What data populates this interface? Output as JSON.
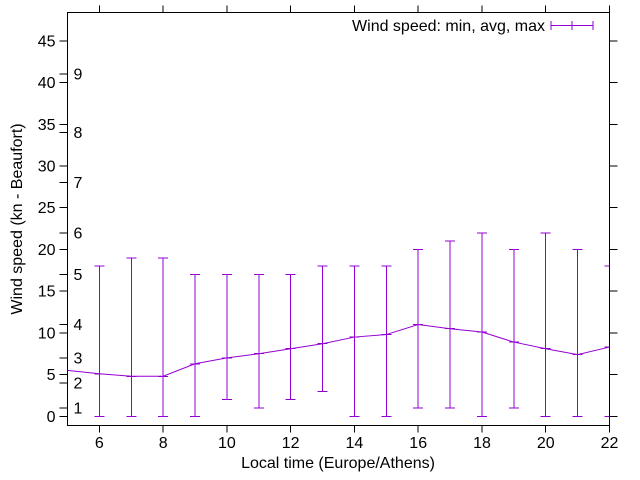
{
  "chart_data": {
    "type": "line",
    "subtype": "yerrorlines",
    "title": "",
    "legend_label": "Wind speed: min, avg, max",
    "legend_position": "top-right-inside",
    "xlabel": "Local time (Europe/Athens)",
    "ylabel": "Wind speed (kn - Beaufort)",
    "xlim": [
      5,
      22
    ],
    "ylim": [
      -1.1,
      48.4
    ],
    "xticks": [
      6,
      8,
      10,
      12,
      14,
      16,
      18,
      20,
      22
    ],
    "yticks": [
      0,
      5,
      10,
      15,
      20,
      25,
      30,
      35,
      40,
      45
    ],
    "grid": false,
    "beaufort_scale": [
      {
        "label": "1",
        "kn": 1
      },
      {
        "label": "2",
        "kn": 4
      },
      {
        "label": "3",
        "kn": 7
      },
      {
        "label": "4",
        "kn": 11
      },
      {
        "label": "5",
        "kn": 17
      },
      {
        "label": "6",
        "kn": 22
      },
      {
        "label": "7",
        "kn": 28
      },
      {
        "label": "8",
        "kn": 34
      },
      {
        "label": "9",
        "kn": 41
      }
    ],
    "line_start": {
      "x": 5,
      "avg": 5.5
    },
    "points": [
      {
        "x": 6,
        "min": 0,
        "avg": 5.1,
        "max": 18
      },
      {
        "x": 7,
        "min": 0,
        "avg": 4.8,
        "max": 19
      },
      {
        "x": 8,
        "min": 0,
        "avg": 4.8,
        "max": 19
      },
      {
        "x": 9,
        "min": 0,
        "avg": 6.3,
        "max": 17
      },
      {
        "x": 10,
        "min": 2,
        "avg": 7.0,
        "max": 17
      },
      {
        "x": 11,
        "min": 1,
        "avg": 7.5,
        "max": 17
      },
      {
        "x": 12,
        "min": 2,
        "avg": 8.1,
        "max": 17
      },
      {
        "x": 13,
        "min": 3,
        "avg": 8.7,
        "max": 18
      },
      {
        "x": 14,
        "min": 0,
        "avg": 9.5,
        "max": 18
      },
      {
        "x": 15,
        "min": 0,
        "avg": 9.8,
        "max": 18
      },
      {
        "x": 16,
        "min": 1,
        "avg": 11.0,
        "max": 20
      },
      {
        "x": 17,
        "min": 1,
        "avg": 10.5,
        "max": 21
      },
      {
        "x": 18,
        "min": 0,
        "avg": 10.1,
        "max": 22
      },
      {
        "x": 19,
        "min": 1,
        "avg": 8.9,
        "max": 20
      },
      {
        "x": 20,
        "min": 0,
        "avg": 8.1,
        "max": 22
      },
      {
        "x": 21,
        "min": 0,
        "avg": 7.4,
        "max": 20
      },
      {
        "x": 22,
        "min": 0,
        "avg": 8.3,
        "max": 18
      }
    ],
    "series_color": "#9400d3",
    "axis_color": "#000000",
    "background_color": "#ffffff"
  }
}
